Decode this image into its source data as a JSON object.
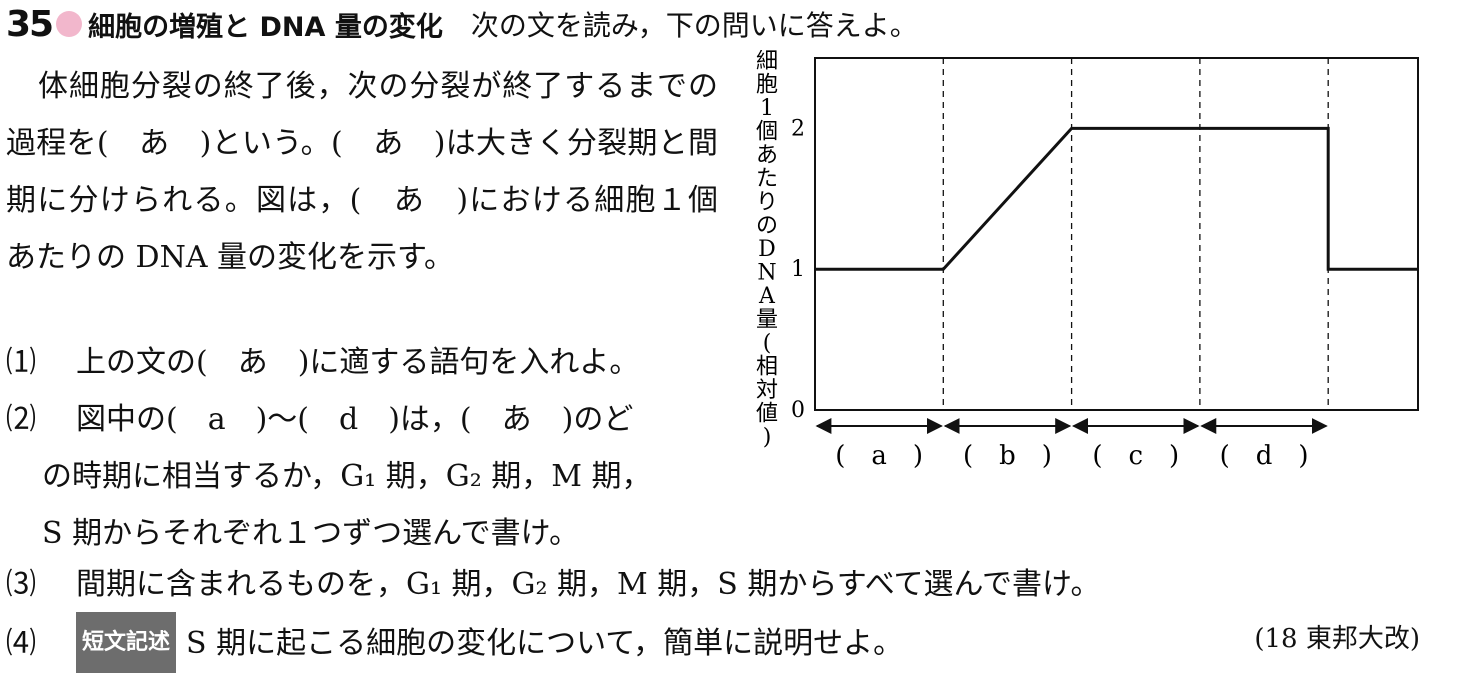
{
  "header": {
    "number": "35",
    "title": "細胞の増殖と DNA 量の変化",
    "instruction": "次の文を読み，下の問いに答えよ。",
    "accent_color": "#f2b7cc"
  },
  "intro": "体細胞分裂の終了後，次の分裂が終了するまでの過程を(　あ　)という。(　あ　)は大きく分裂期と間期に分けられる。図は，(　あ　)における細胞１個あたりの DNA 量の変化を示す。",
  "questions": [
    {
      "num": "⑴",
      "text": "上の文の(　あ　)に適する語句を入れよ。"
    },
    {
      "num": "⑵",
      "text": "図中の(　a　)～(　d　)は，(　あ　)のど",
      "cont1": "の時期に相当するか，G₁ 期，G₂ 期，M 期，",
      "cont2": "S 期からそれぞれ１つずつ選んで書け。"
    },
    {
      "num": "⑶",
      "text": "間期に含まれるものを，G₁ 期，G₂ 期，M 期，S 期からすべて選んで書け。"
    },
    {
      "num": "⑷",
      "tag": "短文記述",
      "text": "S 期に起こる細胞の変化について，簡単に説明せよ。"
    }
  ],
  "source": "(18 東邦大改)",
  "chart_data": {
    "type": "line",
    "ylabel": "細胞1個あたりのDNA量(相対値)",
    "yticks": [
      "0",
      "1",
      "2"
    ],
    "ylim": [
      0,
      2.5
    ],
    "periods": [
      "(　a　)",
      "(　b　)",
      "(　c　)",
      "(　d　)"
    ],
    "x": [
      0,
      1,
      2,
      3,
      4,
      4,
      4.7
    ],
    "y": [
      1,
      1,
      2,
      2,
      2,
      1,
      1
    ],
    "xlim": [
      0,
      4.7
    ],
    "period_boundaries": [
      1,
      2,
      3,
      4
    ]
  }
}
